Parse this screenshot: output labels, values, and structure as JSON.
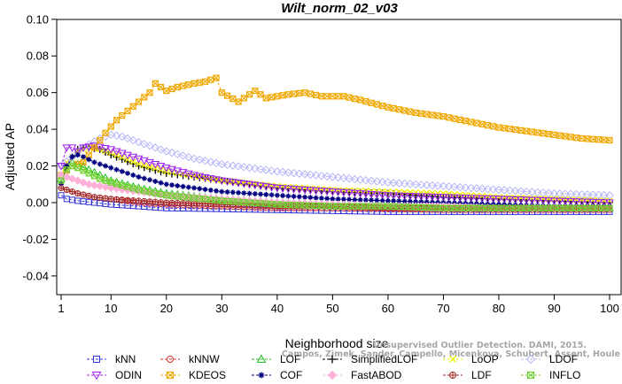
{
  "chart_data": {
    "type": "line",
    "title": "Wilt_norm_02_v03",
    "xlabel": "Neighborhood size",
    "ylabel": "Adjusted AP",
    "xlim": [
      1,
      100
    ],
    "ylim": [
      -0.05,
      0.1
    ],
    "x_ticks": [
      1,
      10,
      20,
      30,
      40,
      50,
      60,
      70,
      80,
      90,
      100
    ],
    "y_ticks": [
      -0.04,
      -0.02,
      0.0,
      0.02,
      0.04,
      0.06,
      0.08,
      0.1
    ],
    "y_tick_labels": [
      "-0.04",
      "-0.02",
      "0.00",
      "0.02",
      "0.04",
      "0.06",
      "0.08",
      "0.10"
    ],
    "grid": false,
    "legend_position": "bottom",
    "credit": [
      "Unsupervised Outlier Detection. DAMI, 2015.",
      "Campos, Zimek, Sander, Campello, Micenkova, Schubert, Assent, Houle"
    ],
    "series": [
      {
        "name": "kNN",
        "color": "#3030d8",
        "marker": "square",
        "points": [
          [
            1,
            0.004
          ],
          [
            2,
            0.002
          ],
          [
            4,
            0.001
          ],
          [
            7,
            0.0
          ],
          [
            10,
            -0.001
          ],
          [
            15,
            -0.002
          ],
          [
            20,
            -0.003
          ],
          [
            30,
            -0.0035
          ],
          [
            40,
            -0.004
          ],
          [
            50,
            -0.0045
          ],
          [
            60,
            -0.005
          ],
          [
            70,
            -0.005
          ],
          [
            80,
            -0.005
          ],
          [
            90,
            -0.005
          ],
          [
            100,
            -0.005
          ]
        ]
      },
      {
        "name": "kNNW",
        "color": "#d83030",
        "marker": "circle",
        "points": [
          [
            1,
            0.008
          ],
          [
            2,
            0.007
          ],
          [
            4,
            0.005
          ],
          [
            7,
            0.003
          ],
          [
            10,
            0.002
          ],
          [
            15,
            0.0
          ],
          [
            20,
            -0.001
          ],
          [
            30,
            -0.002
          ],
          [
            40,
            -0.003
          ],
          [
            50,
            -0.003
          ],
          [
            60,
            -0.0035
          ],
          [
            70,
            -0.004
          ],
          [
            80,
            -0.004
          ],
          [
            90,
            -0.004
          ],
          [
            100,
            -0.004
          ]
        ]
      },
      {
        "name": "LOF",
        "color": "#20c020",
        "marker": "triangle-up",
        "points": [
          [
            1,
            0.013
          ],
          [
            2,
            0.02
          ],
          [
            3,
            0.022
          ],
          [
            4,
            0.021
          ],
          [
            6,
            0.018
          ],
          [
            8,
            0.015
          ],
          [
            10,
            0.012
          ],
          [
            15,
            0.008
          ],
          [
            20,
            0.005
          ],
          [
            30,
            0.002
          ],
          [
            40,
            0.0
          ],
          [
            50,
            -0.001
          ],
          [
            60,
            -0.002
          ],
          [
            70,
            -0.002
          ],
          [
            80,
            -0.003
          ],
          [
            90,
            -0.003
          ],
          [
            100,
            -0.003
          ]
        ]
      },
      {
        "name": "SimplifiedLOF",
        "color": "#000000",
        "marker": "plus",
        "points": [
          [
            1,
            0.015
          ],
          [
            2,
            0.02
          ],
          [
            3,
            0.025
          ],
          [
            4,
            0.029
          ],
          [
            5,
            0.03
          ],
          [
            6,
            0.03
          ],
          [
            8,
            0.029
          ],
          [
            10,
            0.026
          ],
          [
            15,
            0.02
          ],
          [
            20,
            0.016
          ],
          [
            25,
            0.014
          ],
          [
            30,
            0.012
          ],
          [
            40,
            0.008
          ],
          [
            50,
            0.006
          ],
          [
            60,
            0.005
          ],
          [
            70,
            0.003
          ],
          [
            80,
            0.002
          ],
          [
            90,
            0.001
          ],
          [
            100,
            0.0
          ]
        ]
      },
      {
        "name": "LoOP",
        "color": "#f0f000",
        "marker": "x",
        "points": [
          [
            1,
            0.015
          ],
          [
            2,
            0.022
          ],
          [
            4,
            0.028
          ],
          [
            6,
            0.03
          ],
          [
            8,
            0.029
          ],
          [
            10,
            0.027
          ],
          [
            15,
            0.021
          ],
          [
            20,
            0.017
          ],
          [
            30,
            0.012
          ],
          [
            40,
            0.009
          ],
          [
            50,
            0.007
          ],
          [
            60,
            0.006
          ],
          [
            70,
            0.005
          ],
          [
            80,
            0.003
          ],
          [
            90,
            0.002
          ],
          [
            100,
            0.001
          ]
        ]
      },
      {
        "name": "LDOF",
        "color": "#b8b8f8",
        "marker": "diamond",
        "points": [
          [
            1,
            0.02
          ],
          [
            3,
            0.025
          ],
          [
            5,
            0.03
          ],
          [
            8,
            0.035
          ],
          [
            10,
            0.037
          ],
          [
            12,
            0.036
          ],
          [
            15,
            0.033
          ],
          [
            20,
            0.028
          ],
          [
            25,
            0.024
          ],
          [
            30,
            0.021
          ],
          [
            40,
            0.017
          ],
          [
            50,
            0.014
          ],
          [
            60,
            0.011
          ],
          [
            70,
            0.009
          ],
          [
            80,
            0.007
          ],
          [
            90,
            0.005
          ],
          [
            100,
            0.004
          ]
        ]
      },
      {
        "name": "ODIN",
        "color": "#a020f0",
        "marker": "triangle-down",
        "points": [
          [
            1,
            0.02
          ],
          [
            2,
            0.03
          ],
          [
            3,
            0.03
          ],
          [
            4,
            0.028
          ],
          [
            5,
            0.03
          ],
          [
            7,
            0.031
          ],
          [
            10,
            0.029
          ],
          [
            12,
            0.027
          ],
          [
            15,
            0.024
          ],
          [
            20,
            0.019
          ],
          [
            25,
            0.015
          ],
          [
            30,
            0.012
          ],
          [
            40,
            0.008
          ],
          [
            50,
            0.006
          ],
          [
            60,
            0.004
          ],
          [
            70,
            0.003
          ],
          [
            80,
            0.002
          ],
          [
            90,
            0.001
          ],
          [
            100,
            0.0
          ]
        ]
      },
      {
        "name": "KDEOS",
        "color": "#f0a800",
        "marker": "square-x",
        "points": [
          [
            1,
            0.015
          ],
          [
            3,
            0.02
          ],
          [
            5,
            0.022
          ],
          [
            7,
            0.03
          ],
          [
            9,
            0.038
          ],
          [
            11,
            0.045
          ],
          [
            13,
            0.05
          ],
          [
            15,
            0.055
          ],
          [
            17,
            0.06
          ],
          [
            18,
            0.065
          ],
          [
            20,
            0.061
          ],
          [
            22,
            0.063
          ],
          [
            25,
            0.065
          ],
          [
            27,
            0.066
          ],
          [
            29,
            0.068
          ],
          [
            30,
            0.06
          ],
          [
            33,
            0.055
          ],
          [
            36,
            0.061
          ],
          [
            38,
            0.057
          ],
          [
            42,
            0.059
          ],
          [
            45,
            0.06
          ],
          [
            48,
            0.058
          ],
          [
            52,
            0.058
          ],
          [
            55,
            0.056
          ],
          [
            60,
            0.052
          ],
          [
            65,
            0.049
          ],
          [
            70,
            0.047
          ],
          [
            75,
            0.044
          ],
          [
            80,
            0.041
          ],
          [
            85,
            0.039
          ],
          [
            90,
            0.037
          ],
          [
            95,
            0.035
          ],
          [
            100,
            0.034
          ]
        ]
      },
      {
        "name": "COF",
        "color": "#000080",
        "marker": "star",
        "points": [
          [
            1,
            0.01
          ],
          [
            2,
            0.02
          ],
          [
            3,
            0.025
          ],
          [
            4,
            0.026
          ],
          [
            5,
            0.025
          ],
          [
            7,
            0.022
          ],
          [
            10,
            0.019
          ],
          [
            15,
            0.014
          ],
          [
            20,
            0.01
          ],
          [
            25,
            0.008
          ],
          [
            30,
            0.006
          ],
          [
            40,
            0.004
          ],
          [
            50,
            0.002
          ],
          [
            60,
            0.001
          ],
          [
            70,
            0.0
          ],
          [
            80,
            -0.001
          ],
          [
            90,
            -0.002
          ],
          [
            100,
            -0.002
          ]
        ]
      },
      {
        "name": "FastABOD",
        "color": "#ffb0d8",
        "marker": "diamond-filled",
        "points": [
          [
            1,
            0.015
          ],
          [
            2,
            0.014
          ],
          [
            4,
            0.012
          ],
          [
            6,
            0.01
          ],
          [
            8,
            0.009
          ],
          [
            10,
            0.008
          ],
          [
            15,
            0.006
          ],
          [
            20,
            0.004
          ],
          [
            30,
            0.002
          ],
          [
            40,
            0.0
          ],
          [
            50,
            -0.001
          ],
          [
            60,
            -0.002
          ],
          [
            70,
            -0.002
          ],
          [
            80,
            -0.003
          ],
          [
            90,
            -0.003
          ],
          [
            100,
            -0.003
          ]
        ]
      },
      {
        "name": "LDF",
        "color": "#a02828",
        "marker": "circle-plus",
        "points": [
          [
            1,
            0.008
          ],
          [
            2,
            0.007
          ],
          [
            4,
            0.005
          ],
          [
            7,
            0.003
          ],
          [
            10,
            0.002
          ],
          [
            15,
            0.001
          ],
          [
            20,
            0.0
          ],
          [
            30,
            -0.001
          ],
          [
            40,
            -0.002
          ],
          [
            50,
            -0.002
          ],
          [
            60,
            -0.003
          ],
          [
            70,
            -0.003
          ],
          [
            80,
            -0.003
          ],
          [
            90,
            -0.003
          ],
          [
            100,
            -0.003
          ]
        ]
      },
      {
        "name": "INFLO",
        "color": "#70d030",
        "marker": "square-x",
        "points": [
          [
            1,
            0.012
          ],
          [
            2,
            0.018
          ],
          [
            3,
            0.02
          ],
          [
            4,
            0.019
          ],
          [
            6,
            0.016
          ],
          [
            8,
            0.013
          ],
          [
            10,
            0.011
          ],
          [
            15,
            0.007
          ],
          [
            20,
            0.004
          ],
          [
            30,
            0.001
          ],
          [
            40,
            -0.001
          ],
          [
            50,
            -0.002
          ],
          [
            60,
            -0.002
          ],
          [
            70,
            -0.003
          ],
          [
            80,
            -0.003
          ],
          [
            90,
            -0.003
          ],
          [
            100,
            -0.003
          ]
        ]
      }
    ]
  }
}
